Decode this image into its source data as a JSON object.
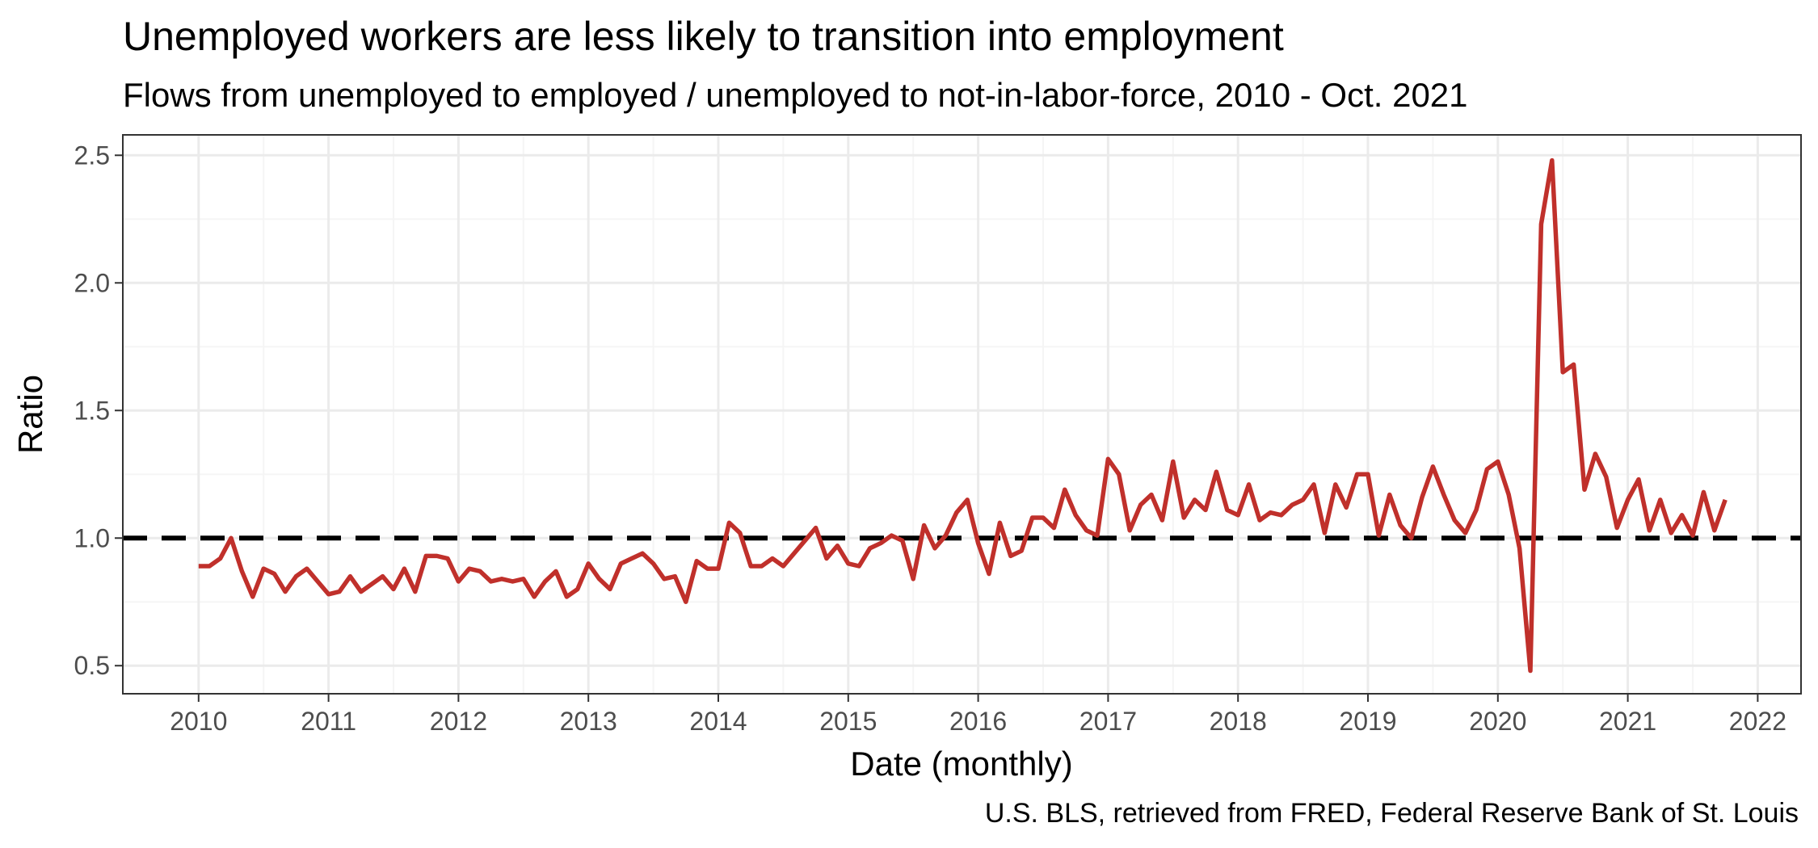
{
  "chart_data": {
    "type": "line",
    "title": "Unemployed workers are less likely to transition into employment",
    "subtitle": "Flows from unemployed to employed / unemployed to not-in-labor-force, 2010 - Oct. 2021",
    "xlabel": "Date (monthly)",
    "ylabel": "Ratio",
    "caption": "U.S. BLS, retrieved from FRED, Federal Reserve Bank of St. Louis",
    "x_ticks": [
      "2010",
      "2011",
      "2012",
      "2013",
      "2014",
      "2015",
      "2016",
      "2017",
      "2018",
      "2019",
      "2020",
      "2021",
      "2022"
    ],
    "y_ticks": [
      "0.5",
      "1.0",
      "1.5",
      "2.0",
      "2.5"
    ],
    "xlim": [
      "2009-06",
      "2022-05"
    ],
    "ylim": [
      0.39,
      2.58
    ],
    "grid": true,
    "reference_line": {
      "y": 1.0,
      "style": "dashed",
      "color": "#000000"
    },
    "series": [
      {
        "color": "#c0302b",
        "start": "2010-01",
        "frequency": "monthly",
        "values": [
          0.89,
          0.89,
          0.92,
          1.0,
          0.87,
          0.77,
          0.88,
          0.86,
          0.79,
          0.85,
          0.88,
          0.83,
          0.78,
          0.79,
          0.85,
          0.79,
          0.82,
          0.85,
          0.8,
          0.88,
          0.79,
          0.93,
          0.93,
          0.92,
          0.83,
          0.88,
          0.87,
          0.83,
          0.84,
          0.83,
          0.84,
          0.77,
          0.83,
          0.87,
          0.77,
          0.8,
          0.9,
          0.84,
          0.8,
          0.9,
          0.92,
          0.94,
          0.9,
          0.84,
          0.85,
          0.75,
          0.91,
          0.88,
          0.88,
          1.06,
          1.02,
          0.89,
          0.89,
          0.92,
          0.89,
          0.94,
          0.99,
          1.04,
          0.92,
          0.97,
          0.9,
          0.89,
          0.96,
          0.98,
          1.01,
          0.99,
          0.84,
          1.05,
          0.96,
          1.01,
          1.1,
          1.15,
          0.98,
          0.86,
          1.06,
          0.93,
          0.95,
          1.08,
          1.08,
          1.04,
          1.19,
          1.09,
          1.03,
          1.01,
          1.31,
          1.25,
          1.03,
          1.13,
          1.17,
          1.07,
          1.3,
          1.08,
          1.15,
          1.11,
          1.26,
          1.11,
          1.09,
          1.21,
          1.07,
          1.1,
          1.09,
          1.13,
          1.15,
          1.21,
          1.02,
          1.21,
          1.12,
          1.25,
          1.25,
          1.01,
          1.17,
          1.05,
          1.0,
          1.16,
          1.28,
          1.17,
          1.07,
          1.02,
          1.11,
          1.27,
          1.3,
          1.17,
          0.96,
          0.48,
          2.23,
          2.48,
          1.65,
          1.68,
          1.19,
          1.33,
          1.24,
          1.04,
          1.15,
          1.23,
          1.03,
          1.15,
          1.02,
          1.09,
          1.01,
          1.18,
          1.03,
          1.15
        ]
      }
    ]
  },
  "colors": {
    "series": "#c0302b",
    "reference_line": "#000000",
    "grid_major": "#ebebeb",
    "grid_minor": "#f5f5f5",
    "panel_border": "#333333",
    "tick_text": "#4d4d4d"
  }
}
